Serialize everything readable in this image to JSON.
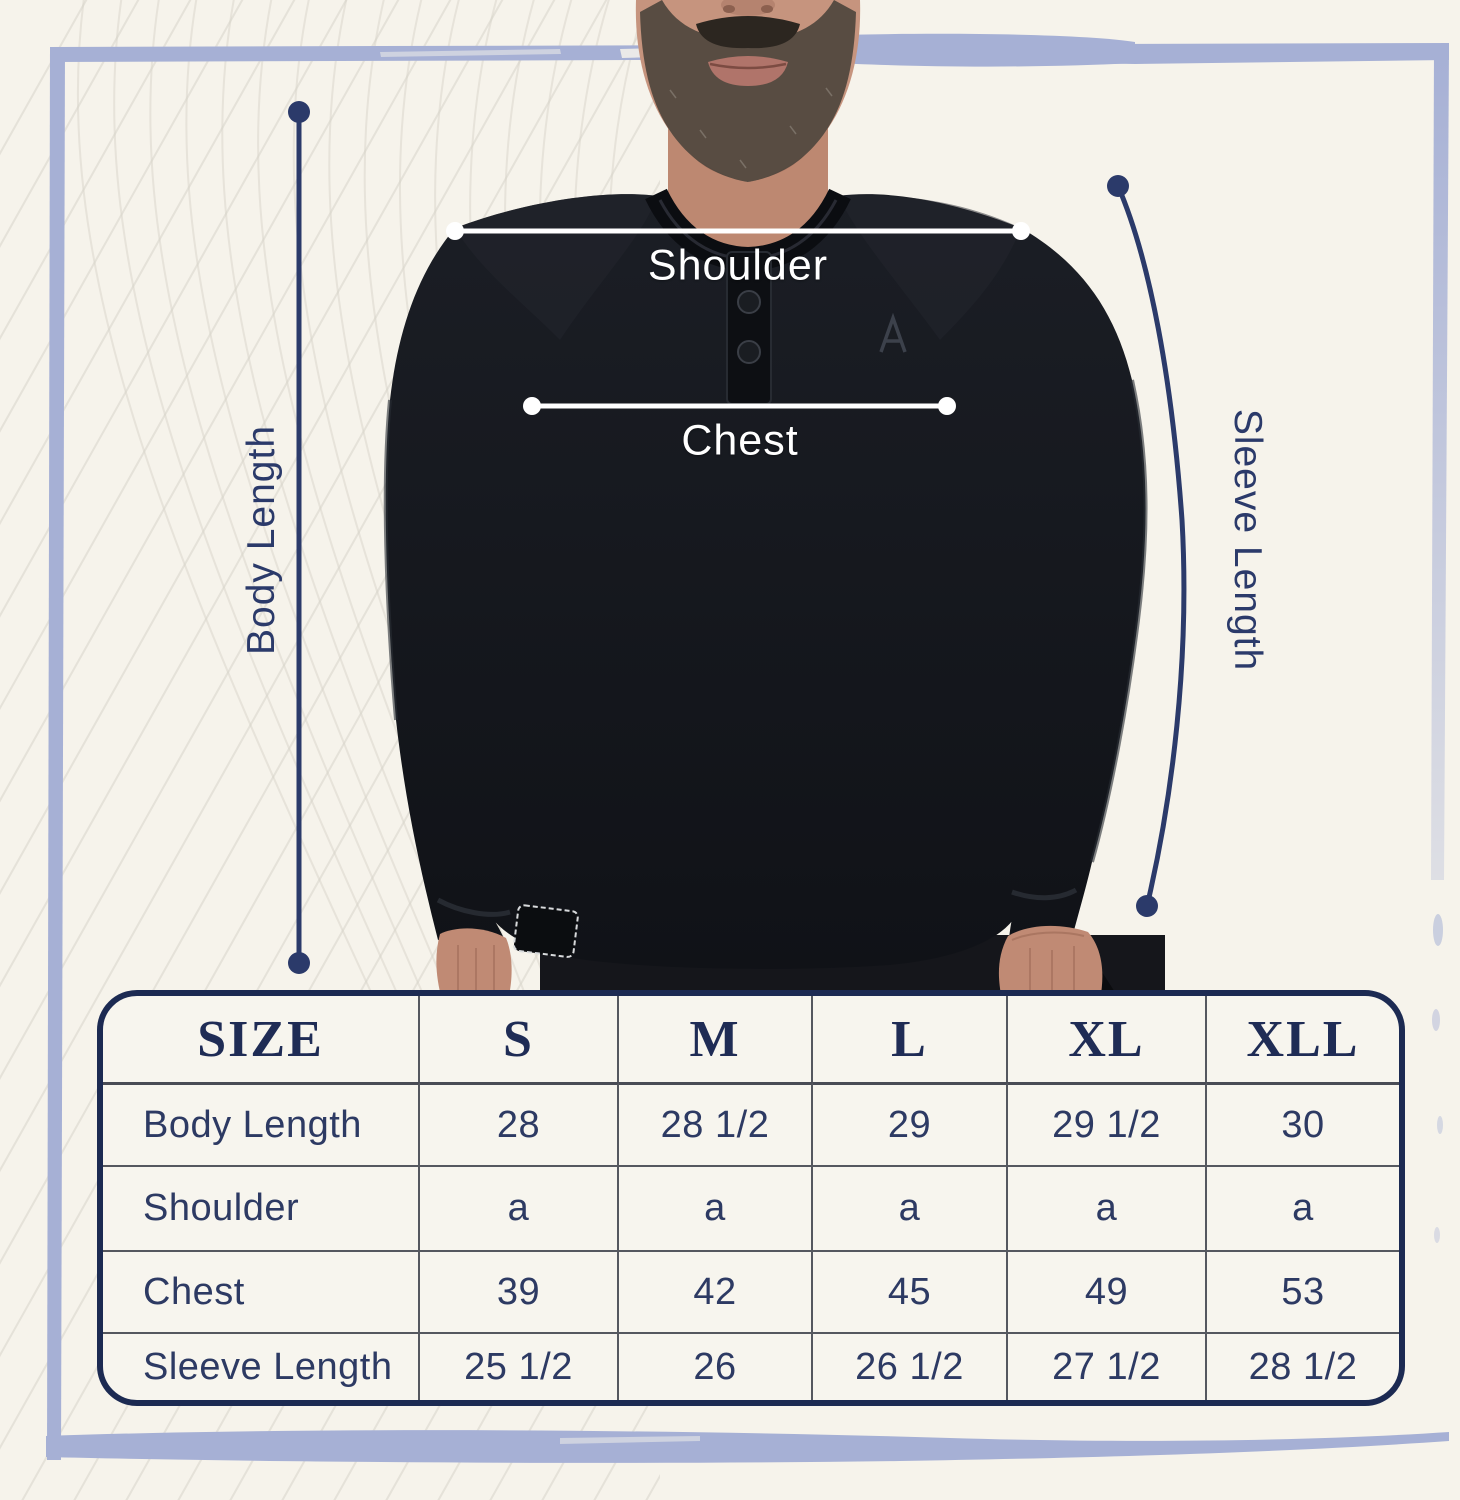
{
  "annotations": {
    "shoulder_label": "Shoulder",
    "chest_label": "Chest",
    "body_length_label": "Body Length",
    "sleeve_length_label": "Sleeve Length"
  },
  "colors": {
    "background_cream": "#f6f3eb",
    "frame_lavender": "#a6b0d5",
    "navy_line": "#2b3a6a",
    "navy_text": "#1f2c55",
    "annotation_white": "#ffffff",
    "shirt_black": "#14161b"
  },
  "chart_data": {
    "type": "table",
    "title": "Garment size chart (inches)",
    "columns": [
      "SIZE",
      "S",
      "M",
      "L",
      "XL",
      "XLL"
    ],
    "rows": [
      {
        "label": "Body Length",
        "values": [
          "28",
          "28 1/2",
          "29",
          "29 1/2",
          "30"
        ]
      },
      {
        "label": "Shoulder",
        "values": [
          "a",
          "a",
          "a",
          "a",
          "a"
        ]
      },
      {
        "label": "Chest",
        "values": [
          "39",
          "42",
          "45",
          "49",
          "53"
        ]
      },
      {
        "label": "Sleeve Length",
        "values": [
          "25 1/2",
          "26",
          "26 1/2",
          "27 1/2",
          "28 1/2"
        ]
      }
    ]
  }
}
